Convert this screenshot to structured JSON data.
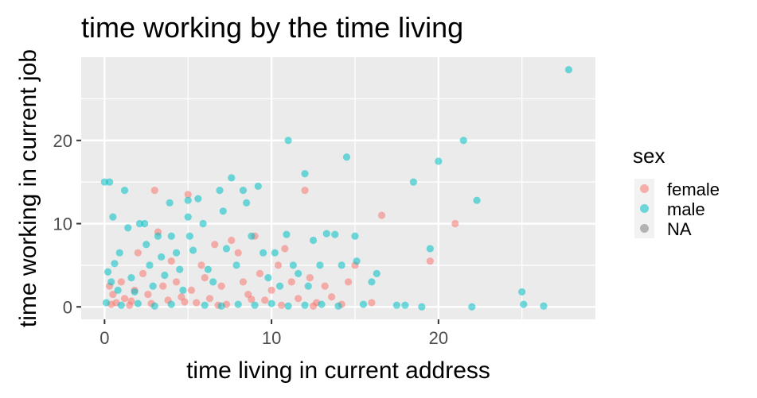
{
  "chart_data": {
    "type": "scatter",
    "title": "time working by the time living",
    "xlabel": "time living in current address",
    "ylabel": "time working in current job",
    "xlim": [
      -1.4,
      29.4
    ],
    "ylim": [
      -1.5,
      30
    ],
    "xticks": [
      0,
      10,
      20
    ],
    "yticks": [
      0,
      10,
      20
    ],
    "grid": true,
    "legend": {
      "title": "sex",
      "position": "right",
      "entries": [
        {
          "label": "female",
          "color": "#F8766D"
        },
        {
          "label": "male",
          "color": "#00BFC4"
        },
        {
          "label": "NA",
          "color": "#7F7F7F"
        }
      ]
    },
    "series": [
      {
        "name": "female",
        "color": "#F8766D",
        "points": [
          [
            0.3,
            2.5
          ],
          [
            0.5,
            1.5
          ],
          [
            0.7,
            0.5
          ],
          [
            1.0,
            3.0
          ],
          [
            1.2,
            1.0
          ],
          [
            1.5,
            0.2
          ],
          [
            1.8,
            2.0
          ],
          [
            2.0,
            6.5
          ],
          [
            2.3,
            4.0
          ],
          [
            2.6,
            1.5
          ],
          [
            3.0,
            14.0
          ],
          [
            3.2,
            9.0
          ],
          [
            3.5,
            2.5
          ],
          [
            3.8,
            0.8
          ],
          [
            4.0,
            5.5
          ],
          [
            4.3,
            3.0
          ],
          [
            4.6,
            1.2
          ],
          [
            5.0,
            13.5
          ],
          [
            5.2,
            2.0
          ],
          [
            5.5,
            0.5
          ],
          [
            5.8,
            5.0
          ],
          [
            6.0,
            3.5
          ],
          [
            6.3,
            1.0
          ],
          [
            6.6,
            7.5
          ],
          [
            7.0,
            2.5
          ],
          [
            7.3,
            0.3
          ],
          [
            7.6,
            8.0
          ],
          [
            8.0,
            6.5
          ],
          [
            8.3,
            3.0
          ],
          [
            8.6,
            1.5
          ],
          [
            9.0,
            8.5
          ],
          [
            9.3,
            4.0
          ],
          [
            9.6,
            0.8
          ],
          [
            10.0,
            2.0
          ],
          [
            10.4,
            5.0
          ],
          [
            10.8,
            7.0
          ],
          [
            11.2,
            3.0
          ],
          [
            11.6,
            1.0
          ],
          [
            12.0,
            14.0
          ],
          [
            12.3,
            3.5
          ],
          [
            12.7,
            0.5
          ],
          [
            13.2,
            2.5
          ],
          [
            13.6,
            1.2
          ],
          [
            14.2,
            0.3
          ],
          [
            14.6,
            3.0
          ],
          [
            15.0,
            5.0
          ],
          [
            16.0,
            0.5
          ],
          [
            16.6,
            11.0
          ],
          [
            19.5,
            5.5
          ],
          [
            21.0,
            10.0
          ],
          [
            0.4,
            0.3
          ],
          [
            1.6,
            0.7
          ],
          [
            2.8,
            0.4
          ],
          [
            4.8,
            0.6
          ],
          [
            6.8,
            0.2
          ],
          [
            8.8,
            0.9
          ],
          [
            10.6,
            0.2
          ],
          [
            12.5,
            0.1
          ]
        ]
      },
      {
        "name": "male",
        "color": "#00BFC4",
        "points": [
          [
            0.0,
            15.0
          ],
          [
            0.3,
            15.0
          ],
          [
            0.5,
            10.8
          ],
          [
            0.2,
            4.2
          ],
          [
            0.4,
            3.0
          ],
          [
            0.6,
            5.2
          ],
          [
            0.8,
            2.0
          ],
          [
            0.1,
            0.5
          ],
          [
            0.9,
            6.5
          ],
          [
            1.2,
            14.0
          ],
          [
            1.4,
            9.5
          ],
          [
            1.6,
            3.5
          ],
          [
            1.8,
            1.8
          ],
          [
            2.1,
            10.0
          ],
          [
            2.4,
            10.0
          ],
          [
            2.5,
            7.5
          ],
          [
            2.7,
            5.0
          ],
          [
            2.9,
            2.5
          ],
          [
            3.2,
            8.5
          ],
          [
            3.4,
            6.0
          ],
          [
            3.6,
            3.8
          ],
          [
            3.9,
            12.5
          ],
          [
            4.0,
            8.5
          ],
          [
            4.3,
            6.5
          ],
          [
            4.5,
            4.5
          ],
          [
            4.7,
            2.0
          ],
          [
            5.0,
            12.8
          ],
          [
            5.0,
            10.8
          ],
          [
            5.1,
            8.5
          ],
          [
            5.3,
            6.8
          ],
          [
            5.6,
            13.0
          ],
          [
            5.9,
            10.0
          ],
          [
            6.2,
            4.5
          ],
          [
            6.5,
            3.0
          ],
          [
            6.9,
            14.0
          ],
          [
            7.1,
            11.5
          ],
          [
            7.3,
            7.0
          ],
          [
            7.6,
            15.5
          ],
          [
            7.9,
            5.0
          ],
          [
            8.3,
            14.0
          ],
          [
            8.5,
            12.5
          ],
          [
            8.8,
            8.5
          ],
          [
            9.2,
            14.5
          ],
          [
            9.5,
            6.5
          ],
          [
            9.8,
            3.5
          ],
          [
            10.2,
            6.5
          ],
          [
            10.5,
            2.5
          ],
          [
            10.9,
            8.7
          ],
          [
            11.0,
            20.0
          ],
          [
            11.3,
            5.0
          ],
          [
            11.6,
            4.0
          ],
          [
            12.0,
            16.0
          ],
          [
            12.2,
            2.5
          ],
          [
            12.5,
            8.0
          ],
          [
            12.9,
            5.0
          ],
          [
            13.3,
            8.8
          ],
          [
            13.8,
            8.7
          ],
          [
            14.2,
            5.0
          ],
          [
            14.5,
            18.0
          ],
          [
            15.0,
            8.5
          ],
          [
            15.1,
            5.5
          ],
          [
            15.5,
            0.3
          ],
          [
            16.0,
            3.0
          ],
          [
            16.3,
            4.0
          ],
          [
            17.5,
            0.2
          ],
          [
            18.0,
            0.2
          ],
          [
            18.5,
            15.0
          ],
          [
            19.0,
            0.0
          ],
          [
            19.5,
            7.0
          ],
          [
            20.0,
            17.5
          ],
          [
            21.5,
            20.0
          ],
          [
            22.0,
            0.0
          ],
          [
            22.3,
            12.8
          ],
          [
            25.0,
            1.8
          ],
          [
            25.1,
            0.3
          ],
          [
            26.3,
            0.1
          ],
          [
            27.8,
            28.5
          ],
          [
            1.0,
            0.2
          ],
          [
            2.0,
            0.4
          ],
          [
            3.0,
            0.1
          ],
          [
            4.0,
            0.3
          ],
          [
            6.0,
            0.2
          ],
          [
            7.0,
            0.1
          ],
          [
            8.0,
            0.3
          ],
          [
            9.0,
            0.2
          ],
          [
            10.0,
            0.4
          ],
          [
            11.0,
            0.1
          ],
          [
            12.0,
            0.2
          ],
          [
            13.0,
            0.3
          ],
          [
            14.0,
            0.1
          ]
        ]
      }
    ]
  }
}
